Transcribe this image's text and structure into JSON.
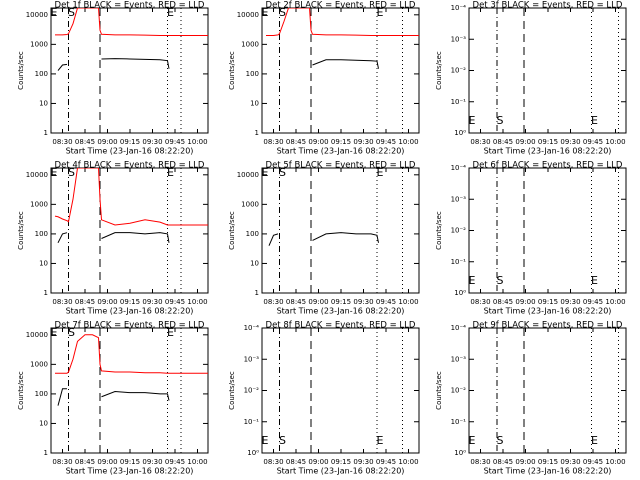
{
  "chart_data": [
    {
      "type": "line",
      "title": "Det 1f BLACK = Events, RED = LLD",
      "xlabel": "Start Time (23-Jan-16 08:22:20)",
      "ylabel": "Counts/sec",
      "log": true,
      "xlim": [
        "08:22:20",
        "10:07"
      ],
      "xticks": [
        "08:30",
        "08:45",
        "09:00",
        "09:15",
        "09:30",
        "09:45",
        "10:00"
      ],
      "ylim": [
        1,
        17000
      ],
      "yticks": [
        1,
        10,
        100,
        1000,
        10000
      ],
      "x": [
        "08:25",
        "08:27",
        "08:30",
        "08:33",
        "08:34",
        "08:37",
        "08:40",
        "08:45",
        "08:50",
        "08:54",
        "08:55",
        "08:56",
        "09:05",
        "09:15",
        "09:25",
        "09:35",
        "09:40",
        "09:41",
        "09:50",
        "10:00",
        "10:07"
      ],
      "series": [
        {
          "color": "#000000",
          "values": [
            null,
            130,
            200,
            210,
            null,
            null,
            null,
            null,
            null,
            null,
            null,
            320,
            330,
            320,
            310,
            300,
            280,
            150,
            null,
            null,
            null
          ]
        },
        {
          "color": "#ff0000",
          "values": [
            2100,
            2100,
            2100,
            2150,
            2300,
            5000,
            17000,
            17000,
            17000,
            17000,
            3000,
            2200,
            2100,
            2100,
            2050,
            2000,
            2000,
            2000,
            2000,
            2000,
            2000
          ]
        }
      ],
      "vlines": [
        {
          "x": "08:34",
          "style": "dashdot"
        },
        {
          "x": "08:55",
          "style": "dashed"
        },
        {
          "x": "09:40",
          "style": "dotted"
        },
        {
          "x": "09:49",
          "style": "dotted"
        }
      ],
      "markers": [
        {
          "label": "E",
          "x": "08:22:20"
        },
        {
          "label": "S",
          "x": "08:34"
        },
        {
          "label": "E",
          "x": "09:40"
        }
      ],
      "marker_position": "top"
    },
    {
      "type": "line",
      "title": "Det 2f BLACK = Events, RED = LLD",
      "xlabel": "Start Time (23-Jan-16 08:22:20)",
      "ylabel": "Counts/sec",
      "log": true,
      "xlim": [
        "08:22:20",
        "10:07"
      ],
      "xticks": [
        "08:30",
        "08:45",
        "09:00",
        "09:15",
        "09:30",
        "09:45",
        "10:00"
      ],
      "ylim": [
        1,
        17000
      ],
      "yticks": [
        1,
        10,
        100,
        1000,
        10000
      ],
      "x": [
        "08:25",
        "08:27",
        "08:30",
        "08:33",
        "08:34",
        "08:37",
        "08:40",
        "08:45",
        "08:50",
        "08:54",
        "08:55",
        "08:56",
        "09:05",
        "09:15",
        "09:25",
        "09:35",
        "09:39",
        "09:40",
        "09:50",
        "10:00",
        "10:07"
      ],
      "series": [
        {
          "color": "#000000",
          "values": [
            null,
            null,
            null,
            null,
            null,
            null,
            null,
            null,
            null,
            null,
            null,
            200,
            300,
            300,
            290,
            280,
            270,
            150,
            null,
            null,
            null
          ]
        },
        {
          "color": "#ff0000",
          "values": [
            2000,
            2000,
            2000,
            2100,
            2300,
            6000,
            17000,
            17000,
            17000,
            17000,
            3000,
            2200,
            2100,
            2100,
            2050,
            2000,
            2000,
            2000,
            2000,
            2000,
            2000
          ]
        }
      ],
      "vlines": [
        {
          "x": "08:34",
          "style": "dashdot"
        },
        {
          "x": "08:55",
          "style": "dashed"
        },
        {
          "x": "09:39",
          "style": "dotted"
        },
        {
          "x": "09:56",
          "style": "dotted"
        }
      ],
      "markers": [
        {
          "label": "E",
          "x": "08:22:20"
        },
        {
          "label": "S",
          "x": "08:34"
        },
        {
          "label": "E",
          "x": "09:39"
        }
      ],
      "marker_position": "top"
    },
    {
      "type": "line",
      "title": "Det 3f BLACK = Events, RED = LLD",
      "xlabel": "Start Time (23-Jan-16 08:22:20)",
      "ylabel": "Counts/sec",
      "log": true,
      "xlim": [
        "08:22:20",
        "10:07"
      ],
      "xticks": [
        "08:30",
        "08:45",
        "09:00",
        "09:15",
        "09:30",
        "09:45",
        "10:00"
      ],
      "ylim": [
        1,
        0.0001
      ],
      "yticks": [
        {
          "value": 1,
          "label": "10⁰"
        },
        {
          "value": 0.1,
          "label": "10⁻¹"
        },
        {
          "value": 0.01,
          "label": "10⁻²"
        },
        {
          "value": 0.001,
          "label": "10⁻³"
        },
        {
          "value": 0.0001,
          "label": "10⁻⁴"
        }
      ],
      "vlines": [
        {
          "x": "08:41",
          "style": "dashdot"
        },
        {
          "x": "08:59",
          "style": "dashed"
        },
        {
          "x": "09:44",
          "style": "dotted"
        },
        {
          "x": "10:02",
          "style": "dotted"
        }
      ],
      "markers": [
        {
          "label": "E",
          "x": "08:22:20"
        },
        {
          "label": "S",
          "x": "08:41"
        },
        {
          "label": "E",
          "x": "09:44"
        }
      ],
      "marker_position": "bottom"
    },
    {
      "type": "line",
      "title": "Det 4f BLACK = Events, RED = LLD",
      "xlabel": "Start Time (23-Jan-16 08:22:20)",
      "ylabel": "Counts/sec",
      "log": true,
      "xlim": [
        "08:22:20",
        "10:07"
      ],
      "xticks": [
        "08:30",
        "08:45",
        "09:00",
        "09:15",
        "09:30",
        "09:45",
        "10:00"
      ],
      "ylim": [
        1,
        17000
      ],
      "yticks": [
        1,
        10,
        100,
        1000,
        10000
      ],
      "x": [
        "08:25",
        "08:27",
        "08:30",
        "08:33",
        "08:34",
        "08:37",
        "08:40",
        "08:45",
        "08:50",
        "08:54",
        "08:55",
        "08:56",
        "09:05",
        "09:15",
        "09:25",
        "09:35",
        "09:40",
        "09:41",
        "09:50",
        "10:00",
        "10:07"
      ],
      "series": [
        {
          "color": "#000000",
          "values": [
            null,
            50,
            100,
            110,
            null,
            null,
            null,
            null,
            null,
            null,
            null,
            70,
            110,
            110,
            100,
            110,
            100,
            50,
            null,
            null,
            null
          ]
        },
        {
          "color": "#ff0000",
          "values": [
            400,
            380,
            320,
            280,
            260,
            1500,
            17000,
            17000,
            17000,
            17000,
            1500,
            300,
            200,
            230,
            300,
            250,
            200,
            200,
            200,
            200,
            200
          ]
        }
      ],
      "vlines": [
        {
          "x": "08:34",
          "style": "dashdot"
        },
        {
          "x": "08:55",
          "style": "dashed"
        },
        {
          "x": "09:40",
          "style": "dotted"
        },
        {
          "x": "09:49",
          "style": "dotted"
        }
      ],
      "markers": [
        {
          "label": "E",
          "x": "08:22:20"
        },
        {
          "label": "S",
          "x": "08:34"
        },
        {
          "label": "E",
          "x": "09:40"
        }
      ],
      "marker_position": "top"
    },
    {
      "type": "line",
      "title": "Det 5f BLACK = Events, RED = LLD",
      "xlabel": "Start Time (23-Jan-16 08:22:20)",
      "ylabel": "Counts/sec",
      "log": true,
      "xlim": [
        "08:22:20",
        "10:07"
      ],
      "xticks": [
        "08:30",
        "08:45",
        "09:00",
        "09:15",
        "09:30",
        "09:45",
        "10:00"
      ],
      "ylim": [
        1,
        17000
      ],
      "yticks": [
        1,
        10,
        100,
        1000,
        10000
      ],
      "x": [
        "08:25",
        "08:27",
        "08:30",
        "08:33",
        "08:34",
        "08:37",
        "08:40",
        "08:45",
        "08:50",
        "08:54",
        "08:55",
        "08:56",
        "09:05",
        "09:15",
        "09:25",
        "09:35",
        "09:39",
        "09:40",
        "09:50",
        "10:00",
        "10:07"
      ],
      "series": [
        {
          "color": "#000000",
          "values": [
            null,
            40,
            90,
            100,
            null,
            null,
            null,
            null,
            null,
            null,
            null,
            60,
            100,
            110,
            100,
            100,
            90,
            50,
            null,
            null,
            null
          ]
        }
      ],
      "vlines": [
        {
          "x": "08:34",
          "style": "dashdot"
        },
        {
          "x": "08:55",
          "style": "dashed"
        },
        {
          "x": "09:39",
          "style": "dotted"
        },
        {
          "x": "09:56",
          "style": "dotted"
        }
      ],
      "markers": [
        {
          "label": "E",
          "x": "08:22:20"
        },
        {
          "label": "S",
          "x": "08:34"
        },
        {
          "label": "E",
          "x": "09:39"
        }
      ],
      "marker_position": "top"
    },
    {
      "type": "line",
      "title": "Det 6f BLACK = Events, RED = LLD",
      "xlabel": "Start Time (23-Jan-16 08:22:20)",
      "ylabel": "Counts/sec",
      "log": true,
      "xlim": [
        "08:22:20",
        "10:07"
      ],
      "xticks": [
        "08:30",
        "08:45",
        "09:00",
        "09:15",
        "09:30",
        "09:45",
        "10:00"
      ],
      "ylim": [
        1,
        0.0001
      ],
      "yticks": [
        {
          "value": 1,
          "label": "10⁰"
        },
        {
          "value": 0.1,
          "label": "10⁻¹"
        },
        {
          "value": 0.01,
          "label": "10⁻²"
        },
        {
          "value": 0.001,
          "label": "10⁻³"
        },
        {
          "value": 0.0001,
          "label": "10⁻⁴"
        }
      ],
      "vlines": [
        {
          "x": "08:41",
          "style": "dashdot"
        },
        {
          "x": "08:59",
          "style": "dashed"
        },
        {
          "x": "09:44",
          "style": "dotted"
        },
        {
          "x": "10:02",
          "style": "dotted"
        }
      ],
      "markers": [
        {
          "label": "E",
          "x": "08:22:20"
        },
        {
          "label": "S",
          "x": "08:41"
        },
        {
          "label": "E",
          "x": "09:44"
        }
      ],
      "marker_position": "bottom"
    },
    {
      "type": "line",
      "title": "Det 7f BLACK = Events, RED = LLD",
      "xlabel": "Start Time (23-Jan-16 08:22:20)",
      "ylabel": "Counts/sec",
      "log": true,
      "xlim": [
        "08:22:20",
        "10:07"
      ],
      "xticks": [
        "08:30",
        "08:45",
        "09:00",
        "09:15",
        "09:30",
        "09:45",
        "10:00"
      ],
      "ylim": [
        1,
        17000
      ],
      "yticks": [
        1,
        10,
        100,
        1000,
        10000
      ],
      "x": [
        "08:25",
        "08:27",
        "08:30",
        "08:33",
        "08:34",
        "08:37",
        "08:40",
        "08:45",
        "08:50",
        "08:54",
        "08:55",
        "08:56",
        "09:05",
        "09:15",
        "09:25",
        "09:35",
        "09:40",
        "09:41",
        "09:50",
        "10:00",
        "10:07"
      ],
      "series": [
        {
          "color": "#000000",
          "values": [
            null,
            40,
            150,
            150,
            null,
            null,
            null,
            null,
            null,
            null,
            null,
            80,
            120,
            110,
            110,
            100,
            100,
            60,
            null,
            null,
            null
          ]
        },
        {
          "color": "#ff0000",
          "values": [
            500,
            500,
            500,
            500,
            550,
            1500,
            6000,
            10000,
            10000,
            8000,
            1000,
            600,
            550,
            550,
            520,
            520,
            500,
            500,
            500,
            500,
            500
          ]
        }
      ],
      "vlines": [
        {
          "x": "08:34",
          "style": "dashdot"
        },
        {
          "x": "08:55",
          "style": "dashed"
        },
        {
          "x": "09:40",
          "style": "dotted"
        },
        {
          "x": "09:49",
          "style": "dotted"
        }
      ],
      "markers": [
        {
          "label": "E",
          "x": "08:22:20"
        },
        {
          "label": "S",
          "x": "08:34"
        },
        {
          "label": "E",
          "x": "09:40"
        }
      ],
      "marker_position": "top"
    },
    {
      "type": "line",
      "title": "Det 8f BLACK = Events, RED = LLD",
      "xlabel": "Start Time (23-Jan-16 08:22:20)",
      "ylabel": "Counts/sec",
      "log": true,
      "xlim": [
        "08:22:20",
        "10:07"
      ],
      "xticks": [
        "08:30",
        "08:45",
        "09:00",
        "09:15",
        "09:30",
        "09:45",
        "10:00"
      ],
      "ylim": [
        1,
        0.0001
      ],
      "yticks": [
        {
          "value": 1,
          "label": "10⁰"
        },
        {
          "value": 0.1,
          "label": "10⁻¹"
        },
        {
          "value": 0.01,
          "label": "10⁻²"
        },
        {
          "value": 0.001,
          "label": "10⁻³"
        },
        {
          "value": 0.0001,
          "label": "10⁻⁴"
        }
      ],
      "vlines": [
        {
          "x": "08:34",
          "style": "dashdot"
        },
        {
          "x": "08:55",
          "style": "dashed"
        },
        {
          "x": "09:39",
          "style": "dotted"
        },
        {
          "x": "09:56",
          "style": "dotted"
        }
      ],
      "markers": [
        {
          "label": "E",
          "x": "08:22:20"
        },
        {
          "label": "S",
          "x": "08:34"
        },
        {
          "label": "E",
          "x": "09:39"
        }
      ],
      "marker_position": "bottom"
    },
    {
      "type": "line",
      "title": "Det 9f BLACK = Events, RED = LLD",
      "xlabel": "Start Time (23-Jan-16 08:22:20)",
      "ylabel": "Counts/sec",
      "log": true,
      "xlim": [
        "08:22:20",
        "10:07"
      ],
      "xticks": [
        "08:30",
        "08:45",
        "09:00",
        "09:15",
        "09:30",
        "09:45",
        "10:00"
      ],
      "ylim": [
        1,
        0.0001
      ],
      "yticks": [
        {
          "value": 1,
          "label": "10⁰"
        },
        {
          "value": 0.1,
          "label": "10⁻¹"
        },
        {
          "value": 0.01,
          "label": "10⁻²"
        },
        {
          "value": 0.001,
          "label": "10⁻³"
        },
        {
          "value": 0.0001,
          "label": "10⁻⁴"
        }
      ],
      "vlines": [
        {
          "x": "08:41",
          "style": "dashdot"
        },
        {
          "x": "08:59",
          "style": "dashed"
        },
        {
          "x": "09:44",
          "style": "dotted"
        },
        {
          "x": "10:02",
          "style": "dotted"
        }
      ],
      "markers": [
        {
          "label": "E",
          "x": "08:22:20"
        },
        {
          "label": "S",
          "x": "08:41"
        },
        {
          "label": "E",
          "x": "09:44"
        }
      ],
      "marker_position": "bottom"
    }
  ]
}
